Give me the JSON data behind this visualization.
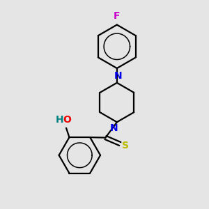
{
  "background_color": "#e5e5e5",
  "bond_color": "#000000",
  "N_color": "#0000ee",
  "O_color": "#ee0000",
  "S_color": "#bbbb00",
  "F_color": "#cc00cc",
  "H_color": "#008080",
  "lw": 1.6,
  "lw_inner": 1.1,
  "fs": 10,
  "figsize": [
    3.0,
    3.0
  ],
  "dpi": 100,
  "xlim": [
    0,
    10
  ],
  "ylim": [
    0,
    10
  ]
}
